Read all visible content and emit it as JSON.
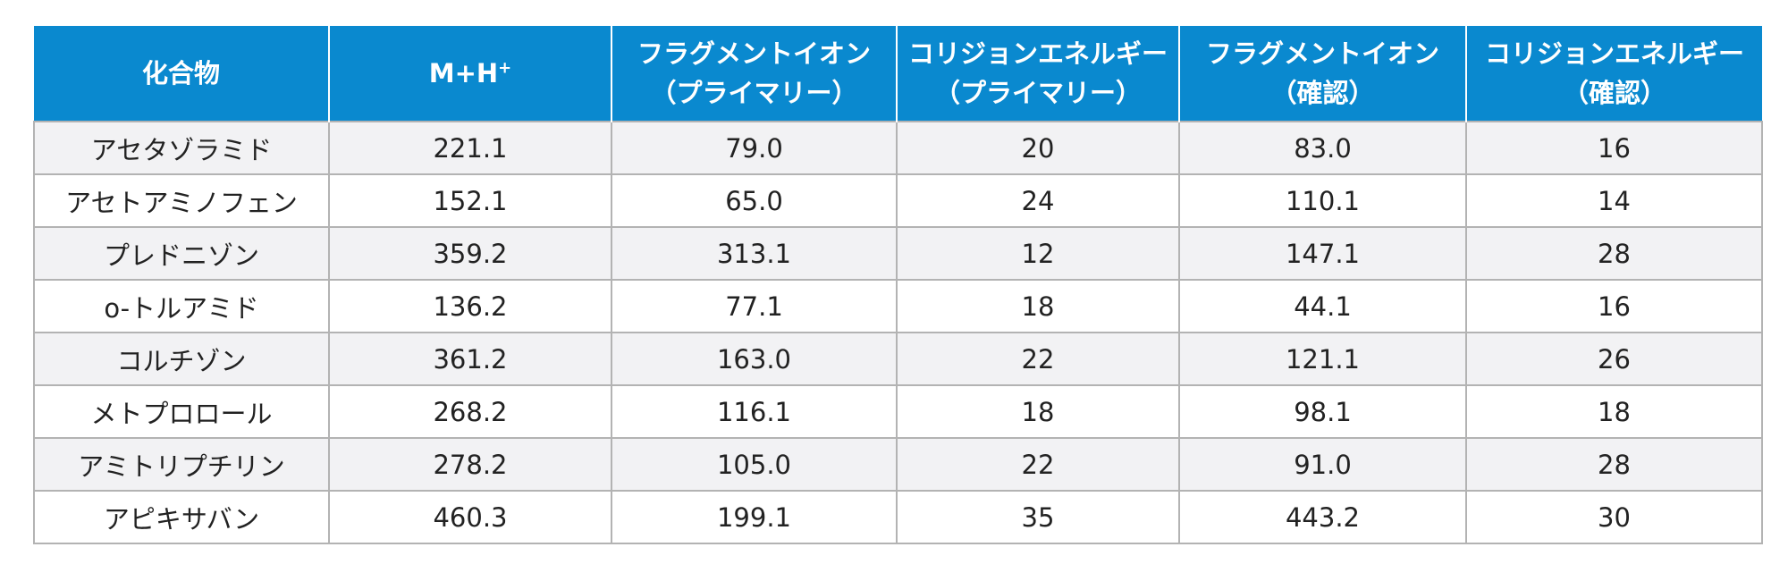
{
  "table": {
    "headers": [
      {
        "lines": [
          "化合物"
        ]
      },
      {
        "lines": [
          "M+H"
        ],
        "sup": "+"
      },
      {
        "lines": [
          "フラグメントイオン",
          "（プライマリー）"
        ]
      },
      {
        "lines": [
          "コリジョンエネルギー",
          "（プライマリー）"
        ]
      },
      {
        "lines": [
          "フラグメントイオン",
          "（確認）"
        ]
      },
      {
        "lines": [
          "コリジョンエネルギー",
          "（確認）"
        ]
      }
    ],
    "rows": [
      [
        "アセタゾラミド",
        "221.1",
        "79.0",
        "20",
        "83.0",
        "16"
      ],
      [
        "アセトアミノフェン",
        "152.1",
        "65.0",
        "24",
        "110.1",
        "14"
      ],
      [
        "プレドニゾン",
        "359.2",
        "313.1",
        "12",
        "147.1",
        "28"
      ],
      [
        "o-トルアミド",
        "136.2",
        "77.1",
        "18",
        "44.1",
        "16"
      ],
      [
        "コルチゾン",
        "361.2",
        "163.0",
        "22",
        "121.1",
        "26"
      ],
      [
        "メトプロロール",
        "268.2",
        "116.1",
        "18",
        "98.1",
        "18"
      ],
      [
        "アミトリプチリン",
        "278.2",
        "105.0",
        "22",
        "91.0",
        "28"
      ],
      [
        "アピキサバン",
        "460.3",
        "199.1",
        "35",
        "443.2",
        "30"
      ]
    ]
  },
  "colors": {
    "header_bg": "#0a89cf",
    "header_text": "#ffffff",
    "row_alt_bg": "#f2f2f4",
    "border": "#b3b3b3"
  }
}
